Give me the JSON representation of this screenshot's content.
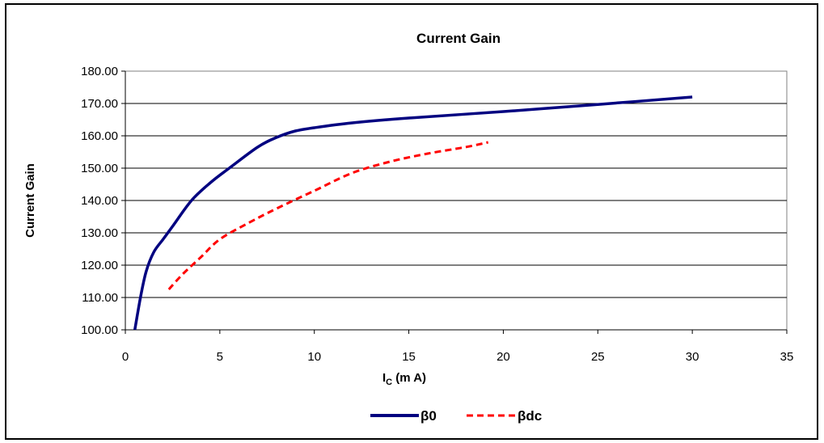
{
  "chart_data": {
    "type": "line",
    "title": "Current Gain",
    "xlabel_main": "I",
    "xlabel_sub": "C",
    "xlabel_rest": " (m A)",
    "ylabel": "Current Gain",
    "xlim": [
      0,
      35
    ],
    "ylim": [
      100,
      180
    ],
    "xticks": [
      "0",
      "5",
      "10",
      "15",
      "20",
      "25",
      "30",
      "35"
    ],
    "yticks": [
      "100.00",
      "110.00",
      "120.00",
      "130.00",
      "140.00",
      "150.00",
      "160.00",
      "170.00",
      "180.00"
    ],
    "grid": "horizontal",
    "legend_position": "bottom",
    "series": [
      {
        "name": "β0",
        "color": "#000080",
        "style": "solid",
        "points": [
          [
            0.5,
            100
          ],
          [
            0.8,
            110
          ],
          [
            1.1,
            118
          ],
          [
            1.5,
            124
          ],
          [
            2.0,
            128
          ],
          [
            2.5,
            132
          ],
          [
            3.5,
            140
          ],
          [
            4.5,
            145.5
          ],
          [
            5.5,
            150
          ],
          [
            7,
            156.5
          ],
          [
            8,
            159.5
          ],
          [
            9,
            161.5
          ],
          [
            10,
            162.5
          ],
          [
            12,
            164
          ],
          [
            15,
            165.5
          ],
          [
            20,
            167.5
          ],
          [
            25,
            169.7
          ],
          [
            30,
            172
          ]
        ]
      },
      {
        "name": "βdc",
        "color": "#ff0000",
        "style": "dashed",
        "points": [
          [
            2.3,
            112.5
          ],
          [
            3,
            117
          ],
          [
            4,
            122.5
          ],
          [
            5,
            128
          ],
          [
            6.5,
            133
          ],
          [
            8,
            137.5
          ],
          [
            10,
            143
          ],
          [
            12,
            148.5
          ],
          [
            14,
            152
          ],
          [
            16,
            154.5
          ],
          [
            18,
            156.5
          ],
          [
            19.2,
            158
          ]
        ]
      }
    ]
  }
}
